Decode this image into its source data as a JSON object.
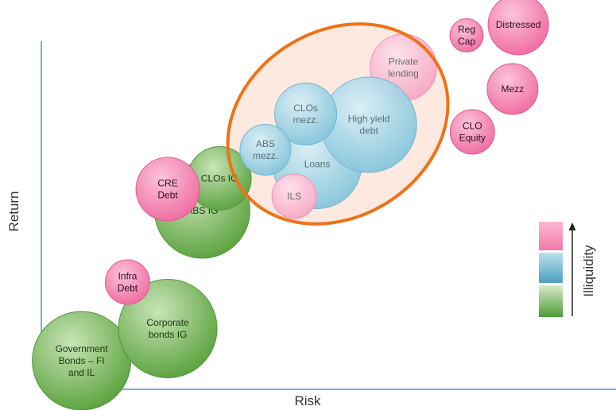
{
  "chart_data": {
    "type": "bubble",
    "title": "",
    "xlabel": "Risk",
    "ylabel": "Return",
    "xlim": [
      0,
      100
    ],
    "ylim": [
      0,
      100
    ],
    "grid": false,
    "colors": {
      "pink_fill": "#f78fb6",
      "pink_stroke": "#e1578d",
      "pink_light_fill": "#f6bcd0",
      "blue_fill": "#a8d6e6",
      "blue_stroke": "#6fb5cf",
      "green_fill": "#7cbd5e",
      "green_stroke": "#4d9a38",
      "axis": "#4d97c9",
      "highlight_ellipse": "#ee7219",
      "highlight_fill": "#fde9df"
    },
    "highlight": {
      "shape": "ellipse",
      "covers": [
        "Private lending",
        "High yield debt",
        "CLOs mezz.",
        "ABS mezz.",
        "Loans",
        "ILS"
      ]
    },
    "legend": {
      "label": "Illiquidity",
      "placement": "right",
      "scale": [
        "green",
        "blue",
        "pink"
      ],
      "direction": "increasing upward"
    },
    "bubbles": [
      {
        "label": "Government Bonds – FI and IL",
        "lines": [
          "Government",
          "Bonds – FI",
          "and IL"
        ],
        "x": 7,
        "y": 8,
        "size": 62,
        "liquidity": "green"
      },
      {
        "label": "Corporate bonds IG",
        "lines": [
          "Corporate",
          "bonds IG"
        ],
        "x": 22,
        "y": 17,
        "size": 62,
        "liquidity": "green"
      },
      {
        "label": "Infra Debt",
        "lines": [
          "Infra",
          "Debt"
        ],
        "x": 15,
        "y": 30,
        "size": 28,
        "liquidity": "pink"
      },
      {
        "label": "ABS IG",
        "lines": [
          "ABS IG"
        ],
        "x": 28,
        "y": 50,
        "size": 60,
        "liquidity": "green"
      },
      {
        "label": "CLOs IG",
        "lines": [
          "CLOs IG"
        ],
        "x": 31,
        "y": 59,
        "size": 40,
        "liquidity": "green"
      },
      {
        "label": "CRE Debt",
        "lines": [
          "CRE",
          "Debt"
        ],
        "x": 22,
        "y": 56,
        "size": 40,
        "liquidity": "pink"
      },
      {
        "label": "Private lending",
        "lines": [
          "Private",
          "lending"
        ],
        "x": 63,
        "y": 90,
        "size": 42,
        "liquidity": "pink_light"
      },
      {
        "label": "Loans",
        "lines": [
          "Loans"
        ],
        "x": 48,
        "y": 63,
        "size": 56,
        "liquidity": "blue"
      },
      {
        "label": "High yield debt",
        "lines": [
          "High yield",
          "debt"
        ],
        "x": 57,
        "y": 74,
        "size": 60,
        "liquidity": "blue"
      },
      {
        "label": "CLOs mezz.",
        "lines": [
          "CLOs",
          "mezz."
        ],
        "x": 46,
        "y": 77,
        "size": 39,
        "liquidity": "blue"
      },
      {
        "label": "ABS mezz.",
        "lines": [
          "ABS",
          "mezz."
        ],
        "x": 39,
        "y": 67,
        "size": 32,
        "liquidity": "blue"
      },
      {
        "label": "ILS",
        "lines": [
          "ILS"
        ],
        "x": 44,
        "y": 54,
        "size": 28,
        "liquidity": "pink_light"
      },
      {
        "label": "Reg Cap",
        "lines": [
          "Reg",
          "Cap"
        ],
        "x": 74,
        "y": 99,
        "size": 21,
        "liquidity": "pink"
      },
      {
        "label": "Distressed",
        "lines": [
          "Distressed"
        ],
        "x": 83,
        "y": 102,
        "size": 38,
        "liquidity": "pink"
      },
      {
        "label": "Mezz",
        "lines": [
          "Mezz"
        ],
        "x": 82,
        "y": 84,
        "size": 32,
        "liquidity": "pink"
      },
      {
        "label": "CLO Equity",
        "lines": [
          "CLO",
          "Equity"
        ],
        "x": 75,
        "y": 72,
        "size": 28,
        "liquidity": "pink"
      }
    ]
  }
}
